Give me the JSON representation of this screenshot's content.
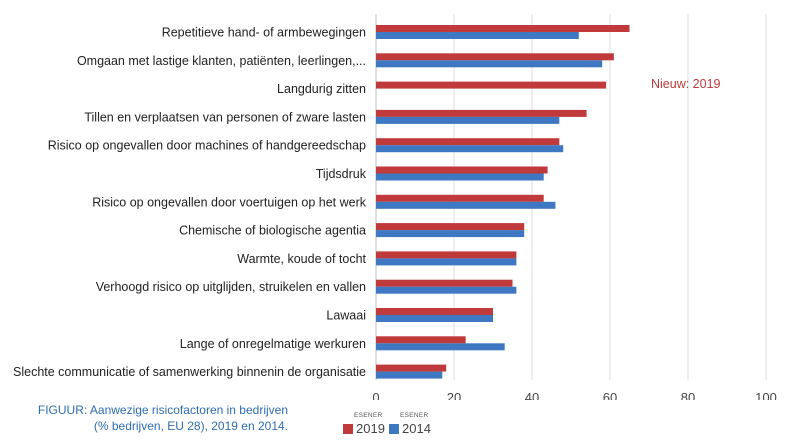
{
  "chart_data": {
    "type": "bar",
    "orientation": "horizontal",
    "categories": [
      "Repetitieve hand- of armbewegingen",
      "Omgaan met lastige klanten, patiënten, leerlingen,...",
      "Langdurig zitten",
      "Tillen en verplaatsen van personen of zware lasten",
      "Risico op ongevallen door machines of handgereedschap",
      "Tijdsdruk",
      "Risico op ongevallen door voertuigen op het werk",
      "Chemische of biologische agentia",
      "Warmte, koude of tocht",
      "Verhoogd risico op uitglijden, struikelen en vallen",
      "Lawaai",
      "Lange of onregelmatige werkuren",
      "Slechte communicatie of samenwerking binnenin de organisatie"
    ],
    "series": [
      {
        "name": "2019",
        "source": "ESENER",
        "color": "#c0393b",
        "values": [
          65,
          61,
          59,
          54,
          47,
          44,
          43,
          38,
          36,
          35,
          30,
          23,
          18
        ]
      },
      {
        "name": "2014",
        "source": "ESENER",
        "color": "#3f78c2",
        "values": [
          52,
          58,
          null,
          47,
          48,
          43,
          46,
          38,
          36,
          36,
          30,
          33,
          17
        ]
      }
    ],
    "xlim": [
      0,
      100
    ],
    "xticks": [
      0,
      20,
      40,
      60,
      80,
      100
    ],
    "grid": true,
    "annotation": "Nieuw: 2019",
    "legend_position": "bottom"
  },
  "caption": {
    "line1": "FIGUUR: Aanwezige risicofactoren in bedrijven",
    "line2": "(% bedrijven, EU 28), 2019 en 2014."
  }
}
